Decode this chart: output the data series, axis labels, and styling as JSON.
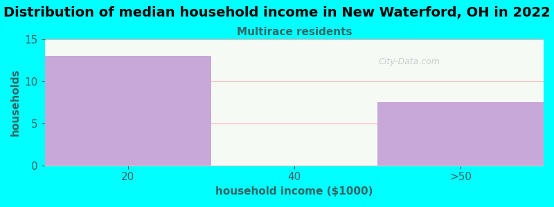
{
  "title": "Distribution of median household income in New Waterford, OH in 2022",
  "subtitle": "Multirace residents",
  "xlabel": "household income ($1000)",
  "ylabel": "households",
  "categories": [
    "20",
    "40",
    ">50"
  ],
  "values": [
    13,
    0.01,
    7.5
  ],
  "bar_colors": [
    "#c8a8d8",
    "#dff0d8",
    "#c8a8d8"
  ],
  "background_color": "#00ffff",
  "plot_bg_color": "#f5faf5",
  "ylim": [
    0,
    15
  ],
  "yticks": [
    0,
    5,
    10,
    15
  ],
  "title_fontsize": 14,
  "subtitle_color": "#336666",
  "subtitle_fontsize": 11,
  "axis_label_color": "#336666",
  "tick_color": "#336666",
  "watermark": "City-Data.com",
  "watermark_color": "#c0c0c0",
  "grid_color": "#ffb0b0",
  "grid_linewidth": 0.8
}
